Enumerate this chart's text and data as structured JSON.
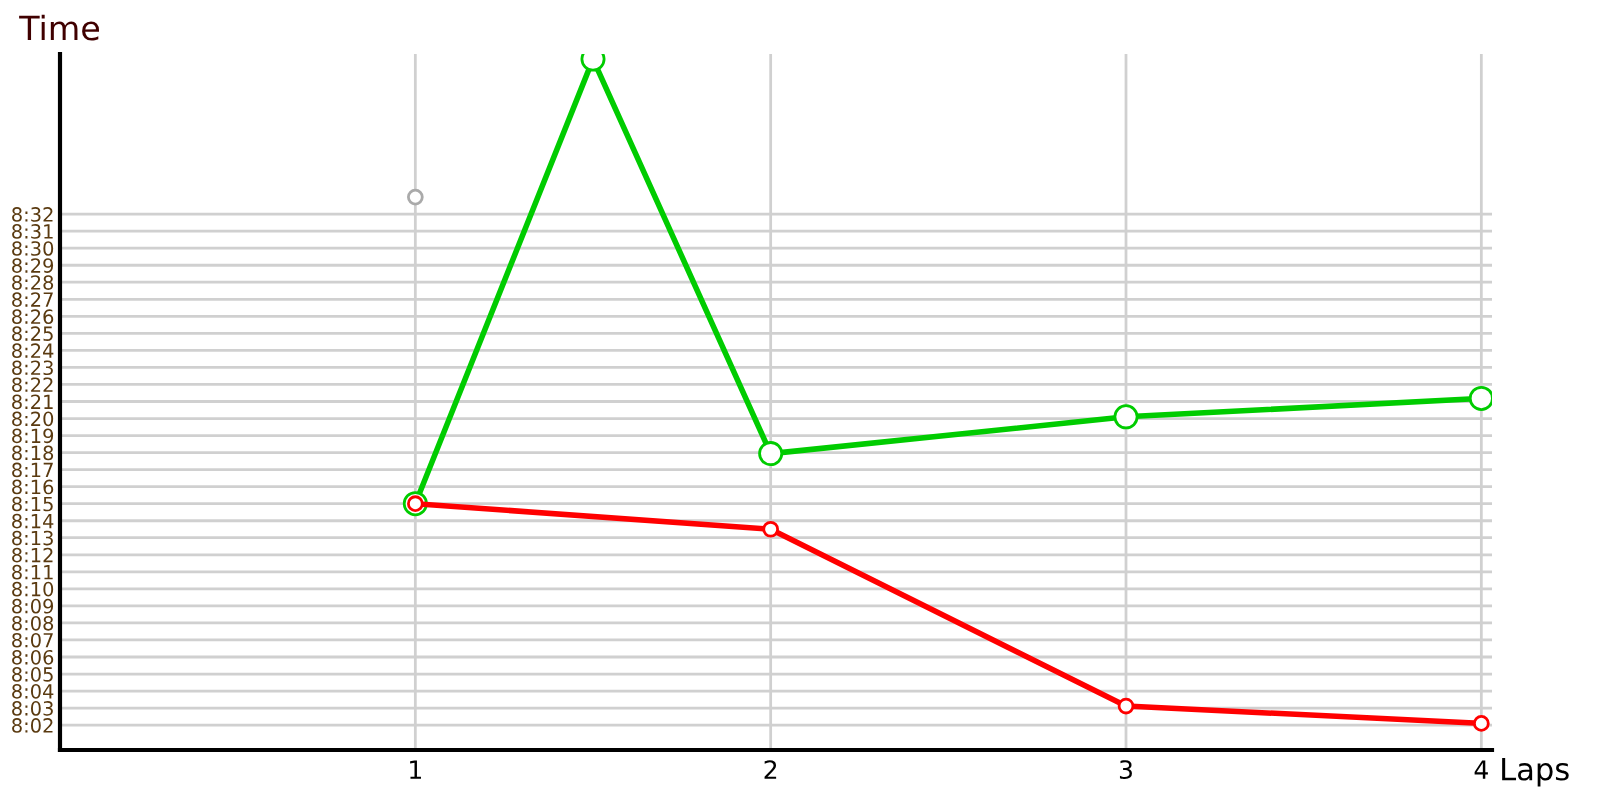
{
  "chart_data": {
    "type": "line",
    "xlabel": "Laps",
    "ylabel": "Time",
    "xlim": [
      0,
      4.03
    ],
    "xticks": [
      1,
      2,
      3,
      4
    ],
    "ylim": [
      8.009,
      8.69
    ],
    "yticks": [
      {
        "value": 8.0333,
        "label": "8:02"
      },
      {
        "value": 8.05,
        "label": "8:03"
      },
      {
        "value": 8.0667,
        "label": "8:04"
      },
      {
        "value": 8.0833,
        "label": "8:05"
      },
      {
        "value": 8.1,
        "label": "8:06"
      },
      {
        "value": 8.1167,
        "label": "8:07"
      },
      {
        "value": 8.1333,
        "label": "8:08"
      },
      {
        "value": 8.15,
        "label": "8:09"
      },
      {
        "value": 8.1667,
        "label": "8:10"
      },
      {
        "value": 8.1833,
        "label": "8:11"
      },
      {
        "value": 8.2,
        "label": "8:12"
      },
      {
        "value": 8.2167,
        "label": "8:13"
      },
      {
        "value": 8.2333,
        "label": "8:14"
      },
      {
        "value": 8.25,
        "label": "8:15"
      },
      {
        "value": 8.2667,
        "label": "8:16"
      },
      {
        "value": 8.2833,
        "label": "8:17"
      },
      {
        "value": 8.3,
        "label": "8:18"
      },
      {
        "value": 8.3167,
        "label": "8:19"
      },
      {
        "value": 8.3333,
        "label": "8:20"
      },
      {
        "value": 8.35,
        "label": "8:21"
      },
      {
        "value": 8.3667,
        "label": "8:22"
      },
      {
        "value": 8.3833,
        "label": "8:23"
      },
      {
        "value": 8.4,
        "label": "8:24"
      },
      {
        "value": 8.4167,
        "label": "8:25"
      },
      {
        "value": 8.4333,
        "label": "8:26"
      },
      {
        "value": 8.45,
        "label": "8:27"
      },
      {
        "value": 8.4667,
        "label": "8:28"
      },
      {
        "value": 8.4833,
        "label": "8:29"
      },
      {
        "value": 8.5,
        "label": "8:30"
      },
      {
        "value": 8.5167,
        "label": "8:31"
      },
      {
        "value": 8.5333,
        "label": "8:32"
      }
    ],
    "grid": true,
    "marker": "circle",
    "line_style": "solid",
    "series": [
      {
        "color": "#00cc00",
        "x": [
          1,
          1.5,
          2,
          3,
          4
        ],
        "values": [
          8.25,
          8.685,
          8.299,
          8.335,
          8.353
        ]
      },
      {
        "color": "#ff0000",
        "x": [
          1,
          2,
          3,
          4
        ],
        "values": [
          8.25,
          8.225,
          8.052,
          8.035
        ]
      },
      {
        "color": "#aaaaaa",
        "type": "scatter",
        "x": [
          1
        ],
        "values": [
          8.55
        ]
      }
    ]
  }
}
